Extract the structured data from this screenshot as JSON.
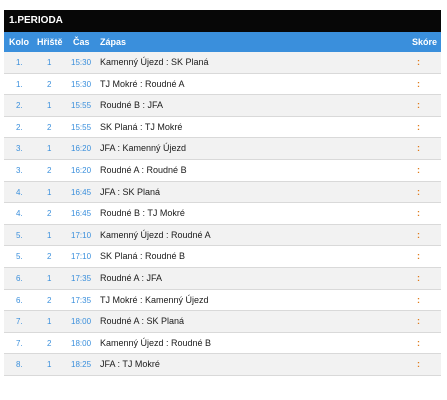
{
  "period": {
    "title": "1.PERIODA"
  },
  "columns": {
    "kolo": "Kolo",
    "hriste": "Hřiště",
    "cas": "Čas",
    "zapas": "Zápas",
    "skore": "Skóre"
  },
  "matches": [
    {
      "kolo": "1.",
      "hriste": "1",
      "cas": "15:30",
      "zapas": "Kamenný Újezd : SK Planá",
      "skore": ":"
    },
    {
      "kolo": "1.",
      "hriste": "2",
      "cas": "15:30",
      "zapas": "TJ Mokré : Roudné A",
      "skore": ":"
    },
    {
      "kolo": "2.",
      "hriste": "1",
      "cas": "15:55",
      "zapas": "Roudné B : JFA",
      "skore": ":"
    },
    {
      "kolo": "2.",
      "hriste": "2",
      "cas": "15:55",
      "zapas": "SK Planá : TJ Mokré",
      "skore": ":"
    },
    {
      "kolo": "3.",
      "hriste": "1",
      "cas": "16:20",
      "zapas": "JFA : Kamenný Újezd",
      "skore": ":"
    },
    {
      "kolo": "3.",
      "hriste": "2",
      "cas": "16:20",
      "zapas": "Roudné A : Roudné B",
      "skore": ":"
    },
    {
      "kolo": "4.",
      "hriste": "1",
      "cas": "16:45",
      "zapas": "JFA : SK Planá",
      "skore": ":"
    },
    {
      "kolo": "4.",
      "hriste": "2",
      "cas": "16:45",
      "zapas": "Roudné B : TJ Mokré",
      "skore": ":"
    },
    {
      "kolo": "5.",
      "hriste": "1",
      "cas": "17:10",
      "zapas": "Kamenný Újezd : Roudné A",
      "skore": ":"
    },
    {
      "kolo": "5.",
      "hriste": "2",
      "cas": "17:10",
      "zapas": "SK Planá : Roudné B",
      "skore": ":"
    },
    {
      "kolo": "6.",
      "hriste": "1",
      "cas": "17:35",
      "zapas": "Roudné A : JFA",
      "skore": ":"
    },
    {
      "kolo": "6.",
      "hriste": "2",
      "cas": "17:35",
      "zapas": "TJ Mokré : Kamenný Újezd",
      "skore": ":"
    },
    {
      "kolo": "7.",
      "hriste": "1",
      "cas": "18:00",
      "zapas": "Roudné A : SK Planá",
      "skore": ":"
    },
    {
      "kolo": "7.",
      "hriste": "2",
      "cas": "18:00",
      "zapas": "Kamenný Újezd : Roudné B",
      "skore": ":"
    },
    {
      "kolo": "8.",
      "hriste": "1",
      "cas": "18:25",
      "zapas": "JFA : TJ Mokré",
      "skore": ":"
    }
  ],
  "colors": {
    "header_bg": "#070707",
    "column_header_bg": "#3a8fdc",
    "accent_text": "#3a8fdc",
    "score_color": "#e07b1a"
  }
}
